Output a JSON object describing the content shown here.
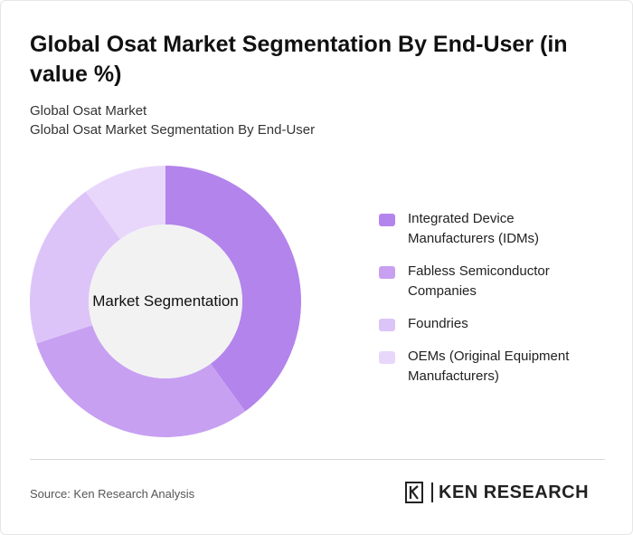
{
  "header": {
    "title": "Global Osat Market Segmentation By End-User (in value %)",
    "subtitle_1": "Global Osat Market",
    "subtitle_2": "Global Osat Market Segmentation By End-User"
  },
  "chart_data": {
    "type": "pie",
    "center_label": "Market Segmentation",
    "categories": [
      "Integrated Device Manufacturers (IDMs)",
      "Fabless Semiconductor Companies",
      "Foundries",
      "OEMs (Original Equipment Manufacturers)"
    ],
    "values": [
      40,
      30,
      20,
      10
    ],
    "colors": [
      "#b384ec",
      "#c7a0f2",
      "#dcc4f8",
      "#e8d7fb"
    ],
    "legend_position": "right"
  },
  "footer": {
    "source": "Source: Ken Research Analysis",
    "logo_text": "KEN RESEARCH"
  }
}
